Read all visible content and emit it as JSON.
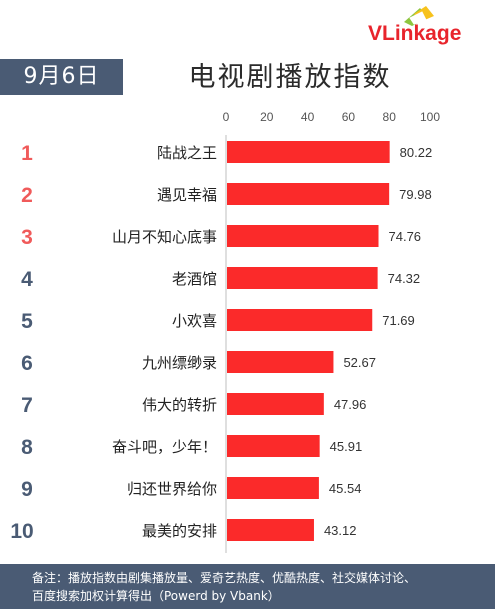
{
  "logo": {
    "text_v": "V",
    "text_rest": "Linkage"
  },
  "date": "9月6日",
  "title": "电视剧播放指数",
  "footer": {
    "line1": "备注：播放指数由剧集播放量、爱奇艺热度、优酷热度、社交媒体讨论、",
    "line2": "百度搜索加权计算得出（Powerd by Vbank）"
  },
  "colors": {
    "bar": "#fb2a2a",
    "rank_top": "#f05a5a",
    "rank_other": "#4a5b74",
    "header": "#4a5b74"
  },
  "chart_data": {
    "type": "bar",
    "orientation": "horizontal",
    "xlim": [
      0,
      100
    ],
    "xticks": [
      "0",
      "20",
      "40",
      "60",
      "80",
      "100"
    ],
    "tick_values": [
      0,
      20,
      40,
      60,
      80,
      100
    ],
    "ranks": [
      "1",
      "2",
      "3",
      "4",
      "5",
      "6",
      "7",
      "8",
      "9",
      "10"
    ],
    "categories": [
      "陆战之王",
      "遇见幸福",
      "山月不知心底事",
      "老酒馆",
      "小欢喜",
      "九州缥缈录",
      "伟大的转折",
      "奋斗吧，少年！",
      "归还世界给你",
      "最美的安排"
    ],
    "values": [
      80.22,
      79.98,
      74.76,
      74.32,
      71.69,
      52.67,
      47.96,
      45.91,
      45.54,
      43.12
    ],
    "value_labels": [
      "80.22",
      "79.98",
      "74.76",
      "74.32",
      "71.69",
      "52.67",
      "47.96",
      "45.91",
      "45.54",
      "43.12"
    ],
    "grid": false
  }
}
